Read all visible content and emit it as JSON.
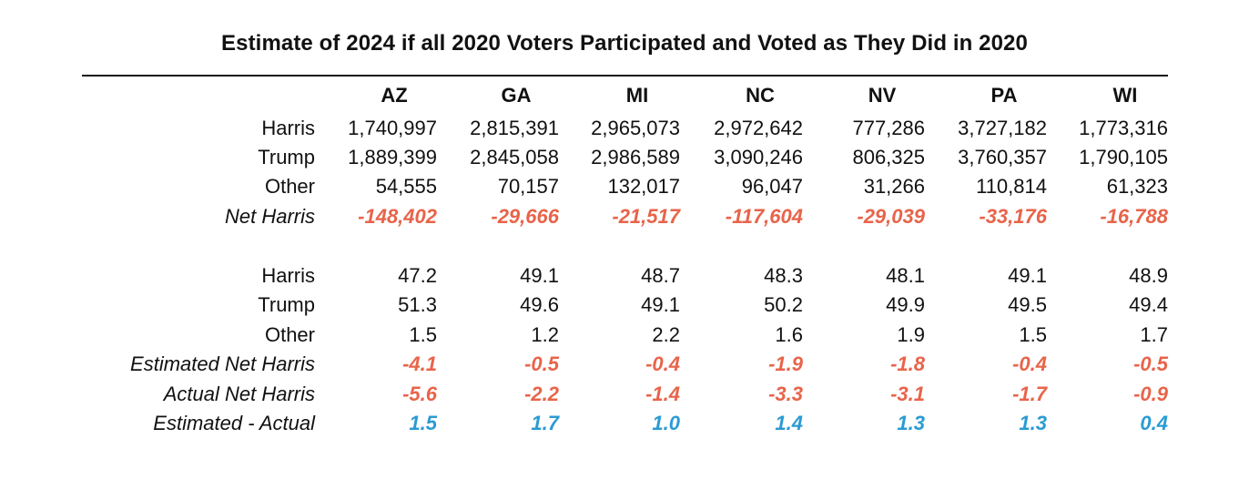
{
  "chart_data": {
    "type": "table",
    "title": "Estimate of 2024 if all 2020 Voters Participated and Voted as They Did in 2020",
    "columns": [
      "AZ",
      "GA",
      "MI",
      "NC",
      "NV",
      "PA",
      "WI"
    ],
    "colors": {
      "negative": "#e8644a",
      "positive": "#2b9bd3",
      "text": "#111111"
    },
    "sections": [
      {
        "rows": [
          {
            "label": "Harris",
            "style": "normal",
            "values": [
              "1,740,997",
              "2,815,391",
              "2,965,073",
              "2,972,642",
              "777,286",
              "3,727,182",
              "1,773,316"
            ]
          },
          {
            "label": "Trump",
            "style": "normal",
            "values": [
              "1,889,399",
              "2,845,058",
              "2,986,589",
              "3,090,246",
              "806,325",
              "3,760,357",
              "1,790,105"
            ]
          },
          {
            "label": "Other",
            "style": "normal",
            "values": [
              "54,555",
              "70,157",
              "132,017",
              "96,047",
              "31,266",
              "110,814",
              "61,323"
            ]
          },
          {
            "label": "Net Harris",
            "style": "negative",
            "values": [
              "-148,402",
              "-29,666",
              "-21,517",
              "-117,604",
              "-29,039",
              "-33,176",
              "-16,788"
            ]
          }
        ]
      },
      {
        "rows": [
          {
            "label": "Harris",
            "style": "normal",
            "values": [
              "47.2",
              "49.1",
              "48.7",
              "48.3",
              "48.1",
              "49.1",
              "48.9"
            ]
          },
          {
            "label": "Trump",
            "style": "normal",
            "values": [
              "51.3",
              "49.6",
              "49.1",
              "50.2",
              "49.9",
              "49.5",
              "49.4"
            ]
          },
          {
            "label": "Other",
            "style": "normal",
            "values": [
              "1.5",
              "1.2",
              "2.2",
              "1.6",
              "1.9",
              "1.5",
              "1.7"
            ]
          },
          {
            "label": "Estimated Net Harris",
            "style": "negative",
            "values": [
              "-4.1",
              "-0.5",
              "-0.4",
              "-1.9",
              "-1.8",
              "-0.4",
              "-0.5"
            ]
          },
          {
            "label": "Actual Net Harris",
            "style": "negative",
            "values": [
              "-5.6",
              "-2.2",
              "-1.4",
              "-3.3",
              "-3.1",
              "-1.7",
              "-0.9"
            ]
          },
          {
            "label": "Estimated - Actual",
            "style": "positive",
            "values": [
              "1.5",
              "1.7",
              "1.0",
              "1.4",
              "1.3",
              "1.3",
              "0.4"
            ]
          }
        ]
      }
    ]
  }
}
